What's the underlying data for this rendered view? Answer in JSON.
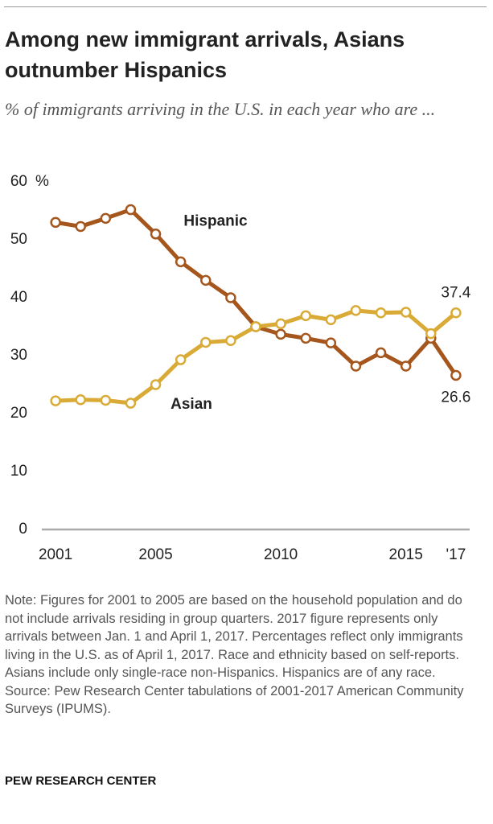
{
  "chart_data": {
    "type": "line",
    "title": "Among new immigrant arrivals, Asians outnumber Hispanics",
    "subtitle": "% of immigrants arriving in the U.S. in each year who are ...",
    "y_unit": "%",
    "x": [
      2001,
      2002,
      2003,
      2004,
      2005,
      2006,
      2007,
      2008,
      2009,
      2010,
      2011,
      2012,
      2013,
      2014,
      2015,
      2016,
      2017
    ],
    "series": [
      {
        "name": "Hispanic",
        "color": "#a5561d",
        "values": [
          53,
          52.3,
          53.7,
          55.2,
          51,
          46.2,
          43,
          40,
          35,
          33.7,
          33,
          32.2,
          28.2,
          30.5,
          28.2,
          33,
          26.6
        ]
      },
      {
        "name": "Asian",
        "color": "#d9ab36",
        "values": [
          22.2,
          22.4,
          22.3,
          21.8,
          25,
          29.3,
          32.3,
          32.6,
          35,
          35.5,
          36.9,
          36.2,
          37.8,
          37.4,
          37.5,
          33.8,
          37.4
        ]
      }
    ],
    "xlim": [
      2000.45,
      2017.55
    ],
    "xticks": [
      2001,
      2005,
      2010,
      2015,
      {
        "value": 2017,
        "label": "'17"
      }
    ],
    "ylim": [
      0,
      60
    ],
    "yticks": [
      0,
      10,
      20,
      30,
      40,
      50,
      60
    ],
    "grid": false,
    "note": "Note: Figures for 2001 to 2005 are based on the household population and do not include arrivals residing in group quarters. 2017 figure represents only arrivals between Jan. 1 and April 1, 2017. Percentages reflect only immigrants living in the U.S. as of April 1, 2017. Race and ethnicity based on self-reports. Asians include only single-race non-Hispanics. Hispanics are of any race.",
    "source": "Source: Pew Research Center tabulations of 2001-2017 American Community Surveys (IPUMS).",
    "footer": "PEW RESEARCH CENTER"
  }
}
